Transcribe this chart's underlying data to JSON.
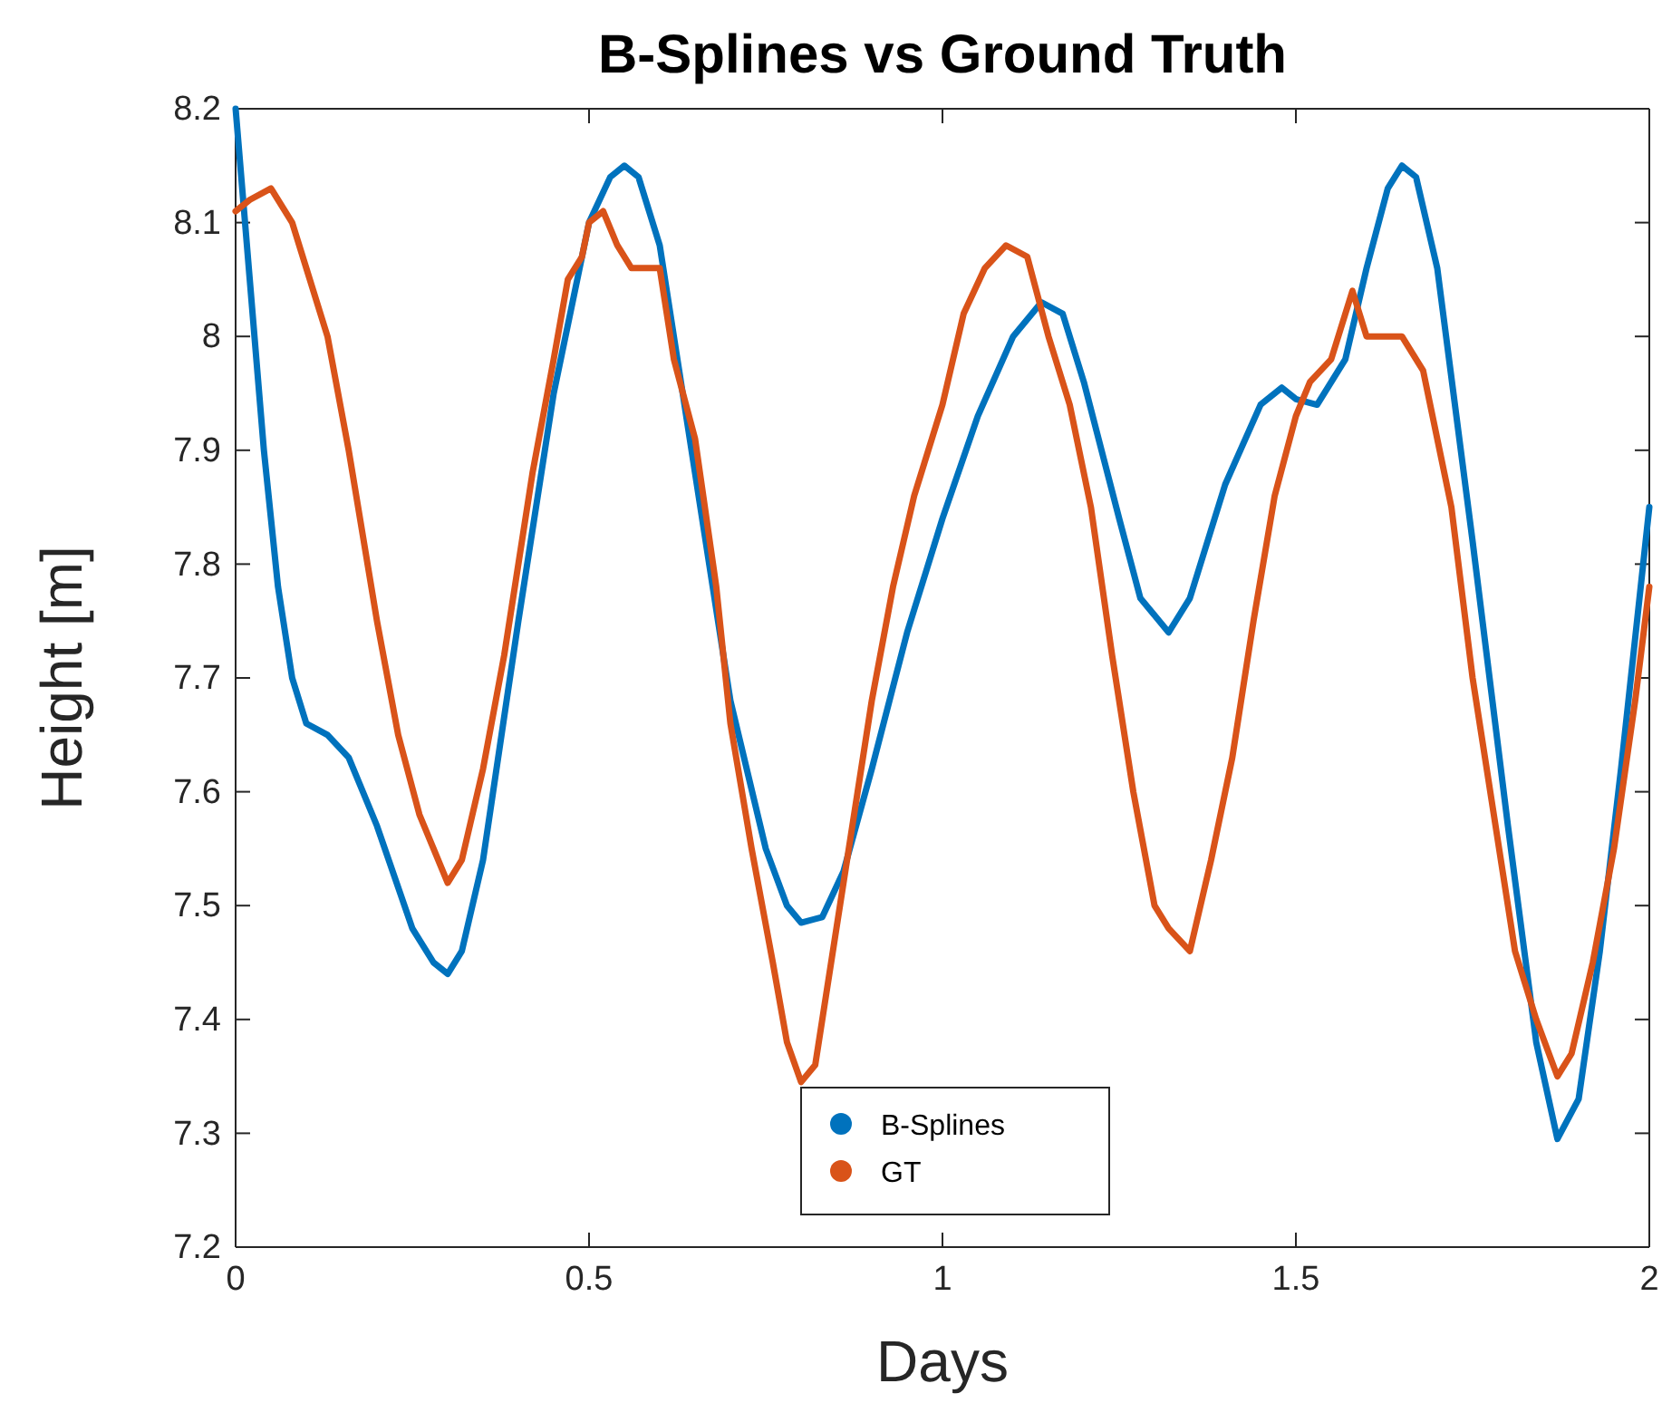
{
  "chart_data": {
    "type": "line",
    "title": "B-Splines vs Ground Truth",
    "xlabel": "Days",
    "ylabel": "Height [m]",
    "xlim": [
      0,
      2
    ],
    "xticks": [
      0,
      0.5,
      1,
      1.5,
      2
    ],
    "ylim": [
      7.2,
      8.2
    ],
    "yticks": [
      7.2,
      7.3,
      7.4,
      7.5,
      7.6,
      7.7,
      7.8,
      7.9,
      8,
      8.1,
      8.2
    ],
    "legend": "bottom",
    "grid": false,
    "line_style": "solid",
    "series": [
      {
        "name": "B-Splines",
        "color": "#0072bd",
        "x": [
          0,
          0.02,
          0.04,
          0.06,
          0.08,
          0.1,
          0.13,
          0.16,
          0.2,
          0.25,
          0.28,
          0.3,
          0.32,
          0.35,
          0.4,
          0.45,
          0.5,
          0.53,
          0.55,
          0.57,
          0.6,
          0.65,
          0.7,
          0.75,
          0.78,
          0.8,
          0.83,
          0.86,
          0.9,
          0.95,
          1,
          1.05,
          1.1,
          1.14,
          1.17,
          1.2,
          1.25,
          1.28,
          1.32,
          1.35,
          1.4,
          1.45,
          1.48,
          1.5,
          1.53,
          1.57,
          1.6,
          1.63,
          1.65,
          1.67,
          1.7,
          1.75,
          1.8,
          1.84,
          1.87,
          1.9,
          1.93,
          1.96,
          2
        ],
        "values": [
          8.2,
          8.05,
          7.9,
          7.78,
          7.7,
          7.66,
          7.65,
          7.63,
          7.57,
          7.48,
          7.45,
          7.44,
          7.46,
          7.54,
          7.75,
          7.95,
          8.1,
          8.14,
          8.15,
          8.14,
          8.08,
          7.88,
          7.68,
          7.55,
          7.5,
          7.485,
          7.49,
          7.53,
          7.62,
          7.74,
          7.84,
          7.93,
          8,
          8.03,
          8.02,
          7.96,
          7.84,
          7.77,
          7.74,
          7.77,
          7.87,
          7.94,
          7.955,
          7.945,
          7.94,
          7.98,
          8.06,
          8.13,
          8.15,
          8.14,
          8.06,
          7.82,
          7.57,
          7.38,
          7.295,
          7.33,
          7.46,
          7.62,
          7.85
        ]
      },
      {
        "name": "GT",
        "color": "#d95319",
        "x": [
          0,
          0.02,
          0.05,
          0.08,
          0.1,
          0.13,
          0.16,
          0.2,
          0.23,
          0.26,
          0.28,
          0.3,
          0.32,
          0.35,
          0.38,
          0.42,
          0.45,
          0.47,
          0.49,
          0.5,
          0.52,
          0.54,
          0.56,
          0.6,
          0.62,
          0.65,
          0.68,
          0.7,
          0.73,
          0.76,
          0.78,
          0.8,
          0.82,
          0.85,
          0.88,
          0.9,
          0.93,
          0.96,
          1,
          1.03,
          1.06,
          1.09,
          1.12,
          1.15,
          1.18,
          1.21,
          1.24,
          1.27,
          1.3,
          1.32,
          1.35,
          1.38,
          1.41,
          1.44,
          1.47,
          1.5,
          1.52,
          1.55,
          1.58,
          1.6,
          1.65,
          1.68,
          1.72,
          1.75,
          1.78,
          1.81,
          1.84,
          1.87,
          1.89,
          1.92,
          1.95,
          1.98,
          2
        ],
        "values": [
          8.11,
          8.12,
          8.13,
          8.1,
          8.06,
          8,
          7.9,
          7.75,
          7.65,
          7.58,
          7.55,
          7.52,
          7.54,
          7.62,
          7.72,
          7.88,
          7.98,
          8.05,
          8.07,
          8.1,
          8.11,
          8.08,
          8.06,
          8.06,
          7.98,
          7.91,
          7.78,
          7.66,
          7.55,
          7.45,
          7.38,
          7.345,
          7.36,
          7.48,
          7.6,
          7.68,
          7.78,
          7.86,
          7.94,
          8.02,
          8.06,
          8.08,
          8.07,
          8,
          7.94,
          7.85,
          7.72,
          7.6,
          7.5,
          7.48,
          7.46,
          7.54,
          7.63,
          7.75,
          7.86,
          7.93,
          7.96,
          7.98,
          8.04,
          8,
          8,
          7.97,
          7.85,
          7.7,
          7.58,
          7.46,
          7.4,
          7.35,
          7.37,
          7.45,
          7.55,
          7.68,
          7.78
        ]
      }
    ]
  }
}
